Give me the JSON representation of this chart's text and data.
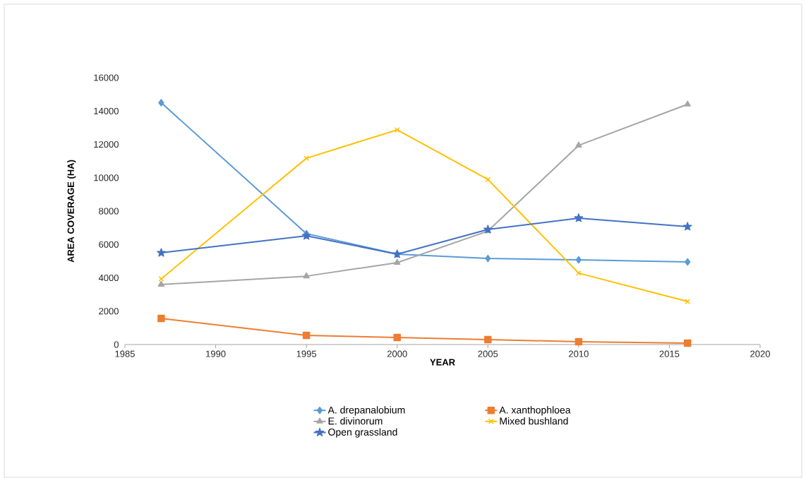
{
  "chart_data": {
    "type": "line",
    "xlabel": "YEAR",
    "ylabel": "AREA  COVERAGE (HA)",
    "x": [
      1987,
      1995,
      2000,
      2005,
      2010,
      2016
    ],
    "series": [
      {
        "name": "A. drepanalobium",
        "color": "#5b9bd5",
        "marker": "diamond",
        "values": [
          14500,
          6650,
          5420,
          5160,
          5080,
          4950
        ]
      },
      {
        "name": "A. xanthophloea",
        "color": "#ed7d31",
        "marker": "square",
        "values": [
          1570,
          550,
          420,
          300,
          170,
          80
        ]
      },
      {
        "name": "E. divinorum",
        "color": "#a5a5a5",
        "marker": "triangle",
        "values": [
          3600,
          4100,
          4910,
          6800,
          11940,
          14400
        ]
      },
      {
        "name": "Mixed bushland",
        "color": "#ffc000",
        "marker": "cross",
        "values": [
          3940,
          11170,
          12870,
          9900,
          4280,
          2580
        ]
      },
      {
        "name": "Open grassland",
        "color": "#4472c4",
        "marker": "star",
        "values": [
          5500,
          6520,
          5420,
          6900,
          7580,
          7070
        ]
      }
    ],
    "xlim": [
      1985,
      2020
    ],
    "xticks": [
      1985,
      1990,
      1995,
      2000,
      2005,
      2010,
      2015,
      2020
    ],
    "ylim": [
      0,
      16000
    ],
    "yticks": [
      0,
      2000,
      4000,
      6000,
      8000,
      10000,
      12000,
      14000,
      16000
    ],
    "grid": false,
    "legend": "bottom",
    "line_style": "solid"
  }
}
